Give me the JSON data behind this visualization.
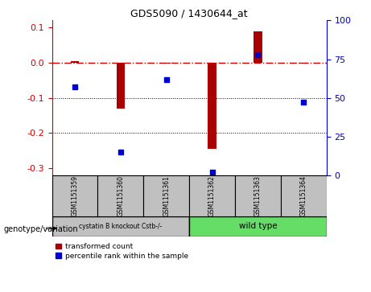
{
  "title": "GDS5090 / 1430644_at",
  "samples": [
    "GSM1151359",
    "GSM1151360",
    "GSM1151361",
    "GSM1151362",
    "GSM1151363",
    "GSM1151364"
  ],
  "bar_values": [
    0.004,
    -0.13,
    -0.003,
    -0.245,
    0.09,
    -0.003
  ],
  "dot_percentiles": [
    57,
    15,
    62,
    2,
    78,
    47
  ],
  "ylim_left": [
    -0.32,
    0.12
  ],
  "ylim_right": [
    0,
    100
  ],
  "yticks_left": [
    0.1,
    0.0,
    -0.1,
    -0.2,
    -0.3
  ],
  "yticks_right": [
    100,
    75,
    50,
    25,
    0
  ],
  "group1_label": "cystatin B knockout Cstb-/-",
  "group2_label": "wild type",
  "group1_count": 3,
  "group2_count": 3,
  "bar_color": "#AA0000",
  "dot_color": "#0000CC",
  "dashed_line_color": "#CC0000",
  "group1_bg": "#C0C0C0",
  "group2_bg": "#66DD66",
  "legend_label_bar": "transformed count",
  "legend_label_dot": "percentile rank within the sample",
  "xlabel_label": "genotype/variation"
}
